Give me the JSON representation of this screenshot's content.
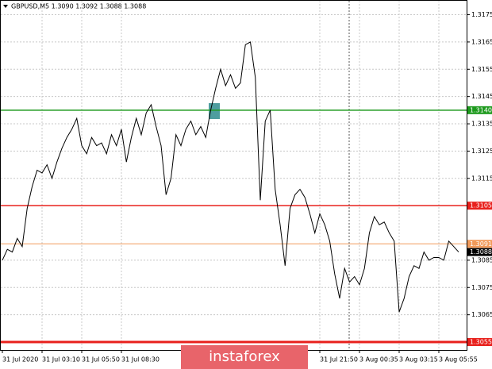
{
  "chart_data": {
    "type": "line",
    "title": "GBPUSD,M5  1.3090 1.3092 1.3088 1.3088",
    "watermark": "instaforex",
    "categories": [
      "31 Jul 2020",
      null,
      null,
      null,
      null,
      null,
      null,
      null,
      "31 Jul 03:10",
      null,
      null,
      null,
      null,
      null,
      null,
      null,
      "31 Jul 05:50",
      null,
      null,
      null,
      null,
      null,
      null,
      null,
      "31 Jul 08:30",
      null,
      null,
      null,
      null,
      null,
      null,
      null,
      null,
      null,
      null,
      null,
      null,
      null,
      null,
      null,
      null,
      null,
      null,
      null,
      null,
      null,
      null,
      null,
      null,
      null,
      null,
      null,
      null,
      null,
      null,
      null,
      null,
      null,
      null,
      null,
      null,
      null,
      null,
      null,
      "31 Jul 21:50",
      null,
      null,
      null,
      null,
      null,
      null,
      null,
      "3 Aug 00:35",
      null,
      null,
      null,
      null,
      null,
      null,
      null,
      "3 Aug 03:15",
      null,
      null,
      null,
      null,
      null,
      null,
      null,
      "3 Aug 05:55",
      null,
      null,
      null,
      null
    ],
    "series": [
      {
        "color": "#000000",
        "values": [
          1.3085,
          1.3089,
          1.3088,
          1.3093,
          1.309,
          1.3104,
          1.3112,
          1.3118,
          1.3117,
          1.312,
          1.3115,
          1.3121,
          1.3126,
          1.313,
          1.3133,
          1.3137,
          1.3127,
          1.3124,
          1.313,
          1.3127,
          1.3128,
          1.3124,
          1.3131,
          1.3127,
          1.3133,
          1.3121,
          1.313,
          1.3137,
          1.3131,
          1.3139,
          1.3142,
          1.3134,
          1.3127,
          1.3109,
          1.3115,
          1.3131,
          1.3127,
          1.3133,
          1.3136,
          1.3131,
          1.3134,
          1.313,
          1.314,
          1.3148,
          1.3155,
          1.3149,
          1.3153,
          1.3148,
          1.315,
          1.3164,
          1.3165,
          1.3152,
          1.3107,
          1.3136,
          1.314,
          1.3111,
          1.3098,
          1.3083,
          1.3104,
          1.3109,
          1.3111,
          1.3108,
          1.3102,
          1.3095,
          1.3102,
          1.3098,
          1.3092,
          1.308,
          1.3071,
          1.3082,
          1.3077,
          1.3079,
          1.3076,
          1.3082,
          1.3095,
          1.3101,
          1.3098,
          1.3099,
          1.3095,
          1.3092,
          1.3066,
          1.3071,
          1.3079,
          1.3083,
          1.3082,
          1.3088,
          1.3085,
          1.3086,
          1.3086,
          1.3085,
          1.3092,
          1.309,
          1.3088
        ]
      }
    ],
    "ylim": [
      1.30521,
      1.31801
    ],
    "yticks": [
      1.3175,
      1.3165,
      1.3155,
      1.3145,
      1.3135,
      1.3125,
      1.3115,
      1.3085,
      1.3075,
      1.3065
    ],
    "grid": true,
    "levels": [
      {
        "value": 1.314,
        "label": "1.3140",
        "color": "#1e9a1e"
      },
      {
        "value": 1.3105,
        "color": "#e8201c"
      },
      {
        "value": 1.3091,
        "color": "#f29a5a"
      },
      {
        "value": 1.3055,
        "color": "#e8201c"
      }
    ],
    "current_price": 1.3088
  }
}
